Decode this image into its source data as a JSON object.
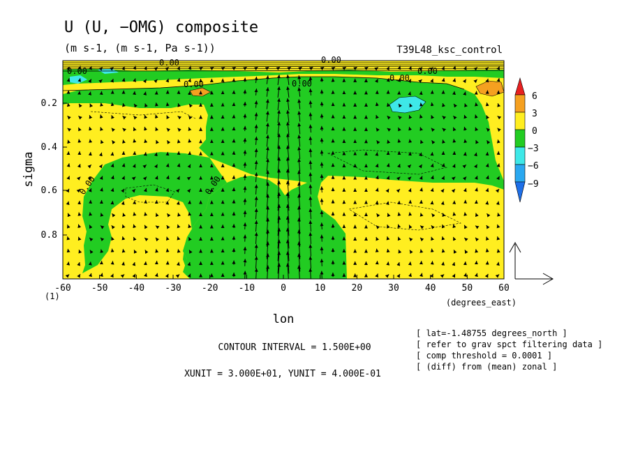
{
  "chart_data": {
    "type": "contour",
    "title": "U (U, −OMG) composite",
    "subtitle": "(m s-1, (m s-1, Pa s-1))",
    "run_label": "T39L48_ksc_control",
    "xlabel": "lon",
    "xunits": "(degrees_east)",
    "ylabel": "sigma",
    "xlim": [
      -60,
      60
    ],
    "ylim": [
      1.0,
      0.0
    ],
    "x_ticks": [
      -60,
      -50,
      -40,
      -30,
      -20,
      -10,
      0,
      10,
      20,
      30,
      40,
      50,
      60
    ],
    "x_tick_labels": [
      "-60",
      "-50",
      "-40",
      "-30",
      "-20",
      "-10",
      "0",
      "10",
      "20",
      "30",
      "40",
      "50",
      "60"
    ],
    "y_ticks": [
      0.2,
      0.4,
      0.6,
      0.8
    ],
    "y_tick_labels": [
      "0.2",
      "0.4",
      "0.6",
      "0.8"
    ],
    "y_bottom_label": "(1)",
    "colorbar": {
      "levels": [
        -9,
        -6,
        -3,
        0,
        3,
        6
      ],
      "labels": [
        "6",
        "3",
        "0",
        "−3",
        "−6",
        "−9"
      ],
      "colors": {
        "below_-9": "#1e6fe8",
        "-9_-6": "#2aa8f0",
        "-6_-3": "#3ee8e8",
        "-3_0": "#22cc22",
        "0_3": "#ffee20",
        "3_6": "#f5a020",
        "above_6": "#e82020"
      }
    },
    "contour_labels": [
      "0.00",
      "0.00",
      "0.00",
      "0.00",
      "0.00",
      "0.00",
      "0.00",
      "0.00",
      "0.00"
    ],
    "negative_region_lon_center": 0,
    "max_updraft_lon": [
      -5,
      5
    ],
    "updraft_max_sigma_speed": "strong upward arrows between lon -10 and 10",
    "info_lines": [
      "[ lat=-1.48755 degrees_north ]",
      "[ refer to grav spct filtering data ]",
      "[ comp threshold = 0.0001 ]",
      "[ (diff) from (mean) zonal ]"
    ],
    "contour_interval": "CONTOUR INTERVAL = 1.500E+00",
    "units_line": "XUNIT = 3.000E+01, YUNIT = 4.000E-01",
    "grid": false,
    "legend": "right"
  }
}
